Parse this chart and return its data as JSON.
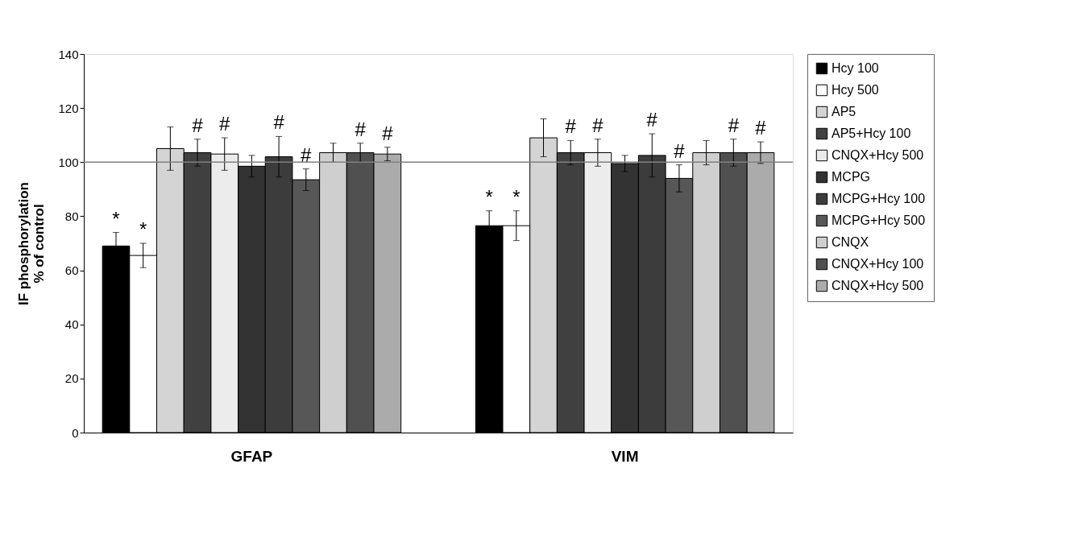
{
  "chart_data": {
    "type": "bar",
    "ylabel": "IF phosphorylation\n% of control",
    "categories": [
      "GFAP",
      "VIM"
    ],
    "series": [
      {
        "name": "Hcy 100",
        "color": "#000000",
        "values": [
          69,
          76.5
        ],
        "errors": [
          5,
          5.5
        ],
        "value_labels": [
          "*",
          "*"
        ]
      },
      {
        "name": "Hcy 500",
        "color": "#ffffff",
        "values": [
          65.5,
          76.5
        ],
        "errors": [
          4.5,
          5.5
        ],
        "value_labels": [
          "*",
          "*"
        ]
      },
      {
        "name": "AP5",
        "color": "#d4d4d4",
        "values": [
          105,
          109
        ],
        "errors": [
          8,
          7
        ],
        "value_labels": [
          null,
          null
        ]
      },
      {
        "name": "AP5+Hcy 100",
        "color": "#404040",
        "values": [
          103.5,
          103.5
        ],
        "errors": [
          5,
          4.5
        ],
        "value_labels": [
          "#",
          "#"
        ]
      },
      {
        "name": "CNQX+Hcy 500",
        "color": "#ececec",
        "values": [
          103,
          103.5
        ],
        "errors": [
          6,
          5
        ],
        "value_labels": [
          "#",
          "#"
        ]
      },
      {
        "name": "MCPG",
        "color": "#333333",
        "values": [
          98.5,
          99.5
        ],
        "errors": [
          4,
          3
        ],
        "value_labels": [
          null,
          null
        ]
      },
      {
        "name": "MCPG+Hcy 100",
        "color": "#3c3c3c",
        "values": [
          102,
          102.5
        ],
        "errors": [
          7.5,
          8
        ],
        "value_labels": [
          "#",
          "#"
        ]
      },
      {
        "name": "MCPG+Hcy 500",
        "color": "#575757",
        "values": [
          93.5,
          94
        ],
        "errors": [
          4,
          5
        ],
        "value_labels": [
          "#",
          "#"
        ]
      },
      {
        "name": "CNQX",
        "color": "#cfcfcf",
        "values": [
          103.5,
          103.5
        ],
        "errors": [
          3.5,
          4.5
        ],
        "value_labels": [
          null,
          null
        ]
      },
      {
        "name": "CNQX+Hcy 100",
        "color": "#505050",
        "values": [
          103.5,
          103.5
        ],
        "errors": [
          3.5,
          5
        ],
        "value_labels": [
          "#",
          "#"
        ]
      },
      {
        "name": "CNQX+Hcy 500",
        "color": "#ababab",
        "values": [
          103,
          103.5
        ],
        "errors": [
          2.5,
          4
        ],
        "value_labels": [
          "#",
          "#"
        ]
      }
    ],
    "ylim": [
      0,
      140
    ],
    "yticks": [
      0,
      20,
      40,
      60,
      80,
      100,
      120,
      140
    ],
    "ref_lines": [
      {
        "axis": "y",
        "value": 100,
        "color": "#808080"
      }
    ],
    "grid": false,
    "legend": "top right"
  }
}
